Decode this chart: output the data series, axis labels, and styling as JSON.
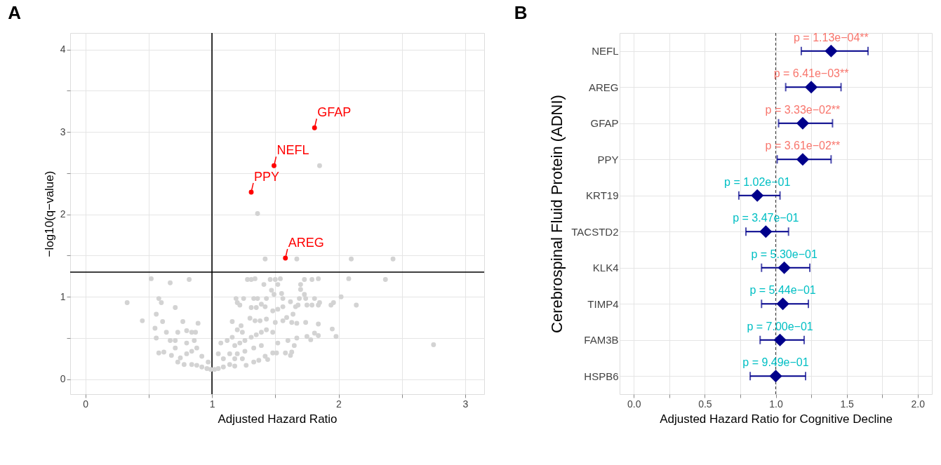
{
  "chart_data": [
    {
      "type": "scatter",
      "title": "A",
      "xlabel": "Adjusted Hazard Ratio",
      "ylabel": "−log10(q−value)",
      "xlim": [
        -0.12,
        3.15
      ],
      "ylim": [
        -0.18,
        4.2
      ],
      "xticks": [
        0,
        {
          "value": 0.5,
          "label": null
        },
        1,
        {
          "value": 1.5,
          "label": null
        },
        2,
        {
          "value": 2.5,
          "label": null
        },
        3
      ],
      "yticks": [
        0,
        {
          "value": 0.5,
          "label": null
        },
        1,
        {
          "value": 1.5,
          "label": null
        },
        2,
        {
          "value": 2.5,
          "label": null
        },
        3,
        {
          "value": 3.5,
          "label": null
        },
        4
      ],
      "grid": true,
      "marker": "circle",
      "series": [
        {
          "color": "#d3d3d3",
          "x": [
            1.42,
            1.67,
            2.1,
            2.43,
            1.85,
            1.36,
            0.52,
            0.67,
            0.82,
            0.33,
            0.45,
            0.58,
            0.6,
            0.71,
            0.56,
            0.61,
            0.77,
            0.89,
            0.55,
            0.56,
            0.58,
            0.62,
            0.68,
            1.28,
            1.31,
            1.34,
            1.46,
            1.5,
            1.54,
            1.73,
            1.79,
            1.84,
            2.08,
            2.37,
            2.02,
            2.14,
            2.75,
            1.41,
            1.52,
            1.47,
            1.49,
            1.55,
            1.7,
            1.7,
            1.73,
            1.19,
            1.25,
            1.33,
            1.36,
            1.43,
            1.56,
            1.69,
            1.74,
            1.81,
            1.62,
            1.85,
            1.96,
            1.94,
            1.84,
            1.79,
            1.75,
            1.68,
            1.66,
            1.56,
            1.52,
            1.48,
            1.42,
            1.39,
            1.35,
            1.31,
            1.22,
            1.2,
            1.64,
            1.59,
            1.43,
            1.3,
            1.34,
            1.38,
            1.23,
            1.16,
            1.5,
            1.56,
            1.63,
            1.67,
            1.74,
            1.84,
            1.95,
            1.98,
            1.84,
            1.81,
            1.78,
            1.75,
            1.67,
            1.6,
            1.52,
            1.65,
            1.63,
            1.62,
            1.58,
            1.51,
            1.48,
            1.44,
            1.42,
            1.37,
            1.33,
            1.27,
            1.18,
            1.14,
            1.09,
            1.05,
            1.02,
            0.99,
            0.96,
            0.92,
            0.88,
            0.84,
            0.78,
            0.73,
            0.75,
            0.8,
            0.84,
            0.88,
            0.92,
            0.97,
            0.71,
            0.67,
            0.71,
            0.8,
            0.86,
            0.73,
            0.8,
            0.84,
            0.87,
            0.64,
            1.07,
            1.12,
            1.16,
            1.18,
            1.22,
            1.26,
            1.31,
            1.35,
            1.39,
            1.43,
            1.48,
            1.24,
            1.2,
            1.14,
            1.2,
            1.26,
            1.33,
            1.39,
            1.09,
            1.18,
            1.24,
            1.05
          ],
          "values": [
            1.46,
            1.46,
            1.46,
            1.46,
            2.59,
            2.01,
            1.22,
            1.17,
            1.21,
            0.93,
            0.71,
            0.98,
            0.93,
            0.87,
            0.79,
            0.7,
            0.7,
            0.68,
            0.62,
            0.5,
            0.32,
            0.33,
            0.29,
            1.21,
            1.21,
            1.22,
            1.21,
            1.21,
            1.22,
            1.21,
            1.21,
            1.22,
            1.22,
            1.21,
            1.0,
            0.9,
            0.42,
            1.15,
            1.15,
            1.08,
            1.03,
            1.04,
            1.15,
            1.09,
            1.03,
            0.98,
            0.98,
            0.98,
            0.98,
            0.98,
            0.98,
            0.98,
            0.98,
            0.98,
            0.94,
            0.93,
            0.93,
            0.9,
            0.9,
            0.9,
            0.9,
            0.9,
            0.88,
            0.88,
            0.85,
            0.83,
            0.88,
            0.91,
            0.87,
            0.87,
            0.9,
            0.93,
            0.79,
            0.75,
            0.73,
            0.74,
            0.71,
            0.71,
            0.65,
            0.7,
            0.69,
            0.71,
            0.69,
            0.68,
            0.69,
            0.67,
            0.61,
            0.52,
            0.53,
            0.56,
            0.48,
            0.52,
            0.5,
            0.47,
            0.44,
            0.41,
            0.33,
            0.29,
            0.32,
            0.32,
            0.32,
            0.24,
            0.28,
            0.23,
            0.21,
            0.17,
            0.16,
            0.18,
            0.15,
            0.13,
            0.12,
            0.12,
            0.13,
            0.15,
            0.17,
            0.18,
            0.18,
            0.21,
            0.26,
            0.31,
            0.34,
            0.38,
            0.28,
            0.21,
            0.38,
            0.47,
            0.47,
            0.44,
            0.47,
            0.57,
            0.59,
            0.57,
            0.57,
            0.57,
            0.44,
            0.47,
            0.51,
            0.41,
            0.44,
            0.47,
            0.51,
            0.54,
            0.57,
            0.6,
            0.57,
            0.57,
            0.6,
            0.31,
            0.31,
            0.34,
            0.38,
            0.41,
            0.25,
            0.25,
            0.25,
            0.31
          ]
        },
        {
          "color": "#ff0000",
          "x": [
            1.81,
            1.49,
            1.31,
            1.58
          ],
          "values": [
            3.05,
            2.59,
            2.27,
            1.47
          ]
        }
      ],
      "ref_lines": [
        {
          "axis": "x",
          "value": 1,
          "color": "#000000",
          "line_style": "solid"
        },
        {
          "axis": "y",
          "value": 1.3,
          "color": "#000000",
          "line_style": "solid"
        }
      ],
      "annotations": [
        {
          "text": "GFAP",
          "x": 1.81,
          "y": 3.05
        },
        {
          "text": "NEFL",
          "x": 1.49,
          "y": 2.59
        },
        {
          "text": "PPY",
          "x": 1.31,
          "y": 2.27
        },
        {
          "text": "AREG",
          "x": 1.58,
          "y": 1.47
        }
      ]
    },
    {
      "type": "scatter",
      "title": "B",
      "orientation": "horizontal",
      "xlabel": "Adjusted Hazard Ratio for Cognitive Decline",
      "ylabel": "Cerebrospinal Fluid Protein (ADNI)",
      "categories": [
        "NEFL",
        "AREG",
        "GFAP",
        "PPY",
        "KRT19",
        "TACSTD2",
        "KLK4",
        "TIMP4",
        "FAM3B",
        "HSPB6"
      ],
      "xlim": [
        -0.1,
        2.1
      ],
      "xticks": [
        {
          "value": 0,
          "label": "0.0"
        },
        {
          "value": 0.25,
          "label": null
        },
        {
          "value": 0.5,
          "label": "0.5"
        },
        {
          "value": 0.75,
          "label": null
        },
        {
          "value": 1,
          "label": "1.0"
        },
        {
          "value": 1.25,
          "label": null
        },
        {
          "value": 1.5,
          "label": "1.5"
        },
        {
          "value": 1.75,
          "label": null
        },
        {
          "value": 2,
          "label": "2.0"
        }
      ],
      "grid": true,
      "marker": "diamond",
      "series": [
        {
          "color": "#00008b",
          "values": [
            1.39,
            1.25,
            1.19,
            1.19,
            null,
            null,
            null,
            null,
            null,
            null
          ],
          "errors": [
            [
              1.18,
              1.65
            ],
            [
              1.07,
              1.46
            ],
            [
              1.02,
              1.4
            ],
            [
              1.01,
              1.39
            ],
            null,
            null,
            null,
            null,
            null,
            null
          ],
          "value_labels": [
            "p = 1.13e−04**",
            "p = 6.41e−03**",
            "p = 3.33e−02**",
            "p = 3.61e−02**",
            null,
            null,
            null,
            null,
            null,
            null
          ]
        },
        {
          "color": "#00008b",
          "values": [
            null,
            null,
            null,
            null,
            0.87,
            0.93,
            1.06,
            1.05,
            1.03,
            1.0
          ],
          "errors": [
            null,
            null,
            null,
            null,
            [
              0.74,
              1.03
            ],
            [
              0.79,
              1.09
            ],
            [
              0.9,
              1.24
            ],
            [
              0.9,
              1.23
            ],
            [
              0.89,
              1.2
            ],
            [
              0.82,
              1.21
            ]
          ],
          "value_labels": [
            null,
            null,
            null,
            null,
            "p = 1.02e−01",
            "p = 3.47e−01",
            "p = 5.30e−01",
            "p = 5.44e−01",
            "p = 7.00e−01",
            "p = 9.49e−01"
          ]
        }
      ],
      "ref_lines": [
        {
          "axis": "x",
          "value": 1,
          "color": "#333333",
          "line_style": "dashed"
        }
      ]
    }
  ]
}
